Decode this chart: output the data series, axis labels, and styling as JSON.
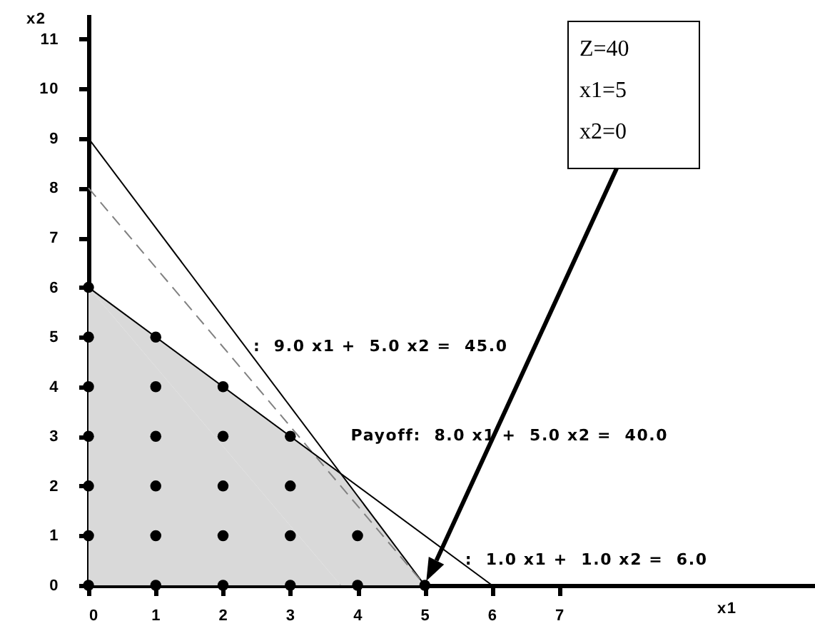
{
  "chart_data": {
    "type": "line",
    "xlabel": "x1",
    "ylabel": "x2",
    "xlim": [
      0,
      10.8
    ],
    "ylim": [
      0,
      11.5
    ],
    "xticks": [
      0,
      1,
      2,
      3,
      4,
      5,
      6,
      7
    ],
    "yticks": [
      0,
      1,
      2,
      3,
      4,
      5,
      6,
      7,
      8,
      9,
      10,
      11
    ],
    "grid": false,
    "series": [
      {
        "type": "area",
        "color": "#d9d9d9",
        "x": [
          0,
          3.75,
          5
        ],
        "values": [
          6,
          2.25,
          0
        ]
      },
      {
        "color": "#000000",
        "line_style": "solid",
        "x": [
          0,
          5
        ],
        "values": [
          9,
          0
        ]
      },
      {
        "color": "#808080",
        "line_style": "dashed",
        "x": [
          0,
          5
        ],
        "values": [
          8,
          0
        ]
      },
      {
        "color": "#000000",
        "line_style": "solid",
        "x": [
          0,
          6
        ],
        "values": [
          6,
          0
        ]
      },
      {
        "type": "scatter",
        "color": "#000000",
        "marker": "circle",
        "x": [
          0,
          1,
          2,
          3,
          4,
          5,
          0,
          1,
          2,
          3,
          4,
          0,
          1,
          2,
          3,
          0,
          1,
          2,
          3,
          0,
          1,
          2,
          0,
          1,
          0
        ],
        "values": [
          0,
          0,
          0,
          0,
          0,
          0,
          1,
          1,
          1,
          1,
          1,
          2,
          2,
          2,
          2,
          3,
          3,
          3,
          3,
          4,
          4,
          4,
          5,
          5,
          6
        ]
      }
    ],
    "annotations": [
      ":  9.0 x1 +  5.0 x2 =  45.0",
      "Payoff:  8.0 x1 +  5.0 x2 =  40.0",
      {
        "text": ":  1.0 x1 +  1.0 x2 =  6.0",
        "x": 5.6,
        "y": 0.5
      },
      "Z=40\nx1=5\nx2=0"
    ]
  }
}
